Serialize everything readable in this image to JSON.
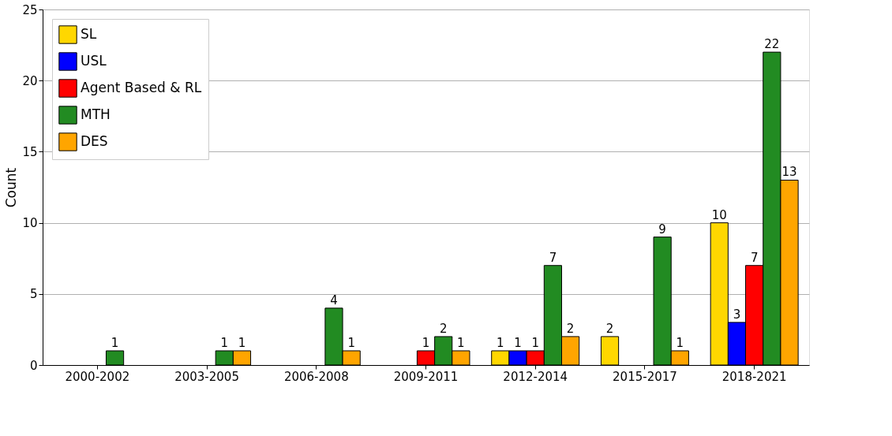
{
  "chart_data": {
    "type": "bar",
    "ylabel": "Count",
    "categories": [
      "2000-2002",
      "2003-2005",
      "2006-2008",
      "2009-2011",
      "2012-2014",
      "2015-2017",
      "2018-2021"
    ],
    "series": [
      {
        "name": "SL",
        "color": "#ffd700",
        "values": [
          null,
          null,
          null,
          null,
          1,
          2,
          10
        ]
      },
      {
        "name": "USL",
        "color": "#0000ff",
        "values": [
          null,
          null,
          null,
          null,
          1,
          null,
          3
        ]
      },
      {
        "name": "Agent Based & RL",
        "color": "#ff0000",
        "values": [
          null,
          null,
          null,
          1,
          1,
          null,
          7
        ]
      },
      {
        "name": "MTH",
        "color": "#228b22",
        "values": [
          1,
          1,
          4,
          2,
          7,
          9,
          22
        ]
      },
      {
        "name": "DES",
        "color": "#ffa500",
        "values": [
          null,
          1,
          1,
          1,
          2,
          1,
          13
        ]
      }
    ],
    "ylim": [
      0,
      25
    ],
    "yticks": [
      0,
      5,
      10,
      15,
      20,
      25
    ],
    "grid": "y",
    "legend": "top left",
    "data_labels": true
  }
}
